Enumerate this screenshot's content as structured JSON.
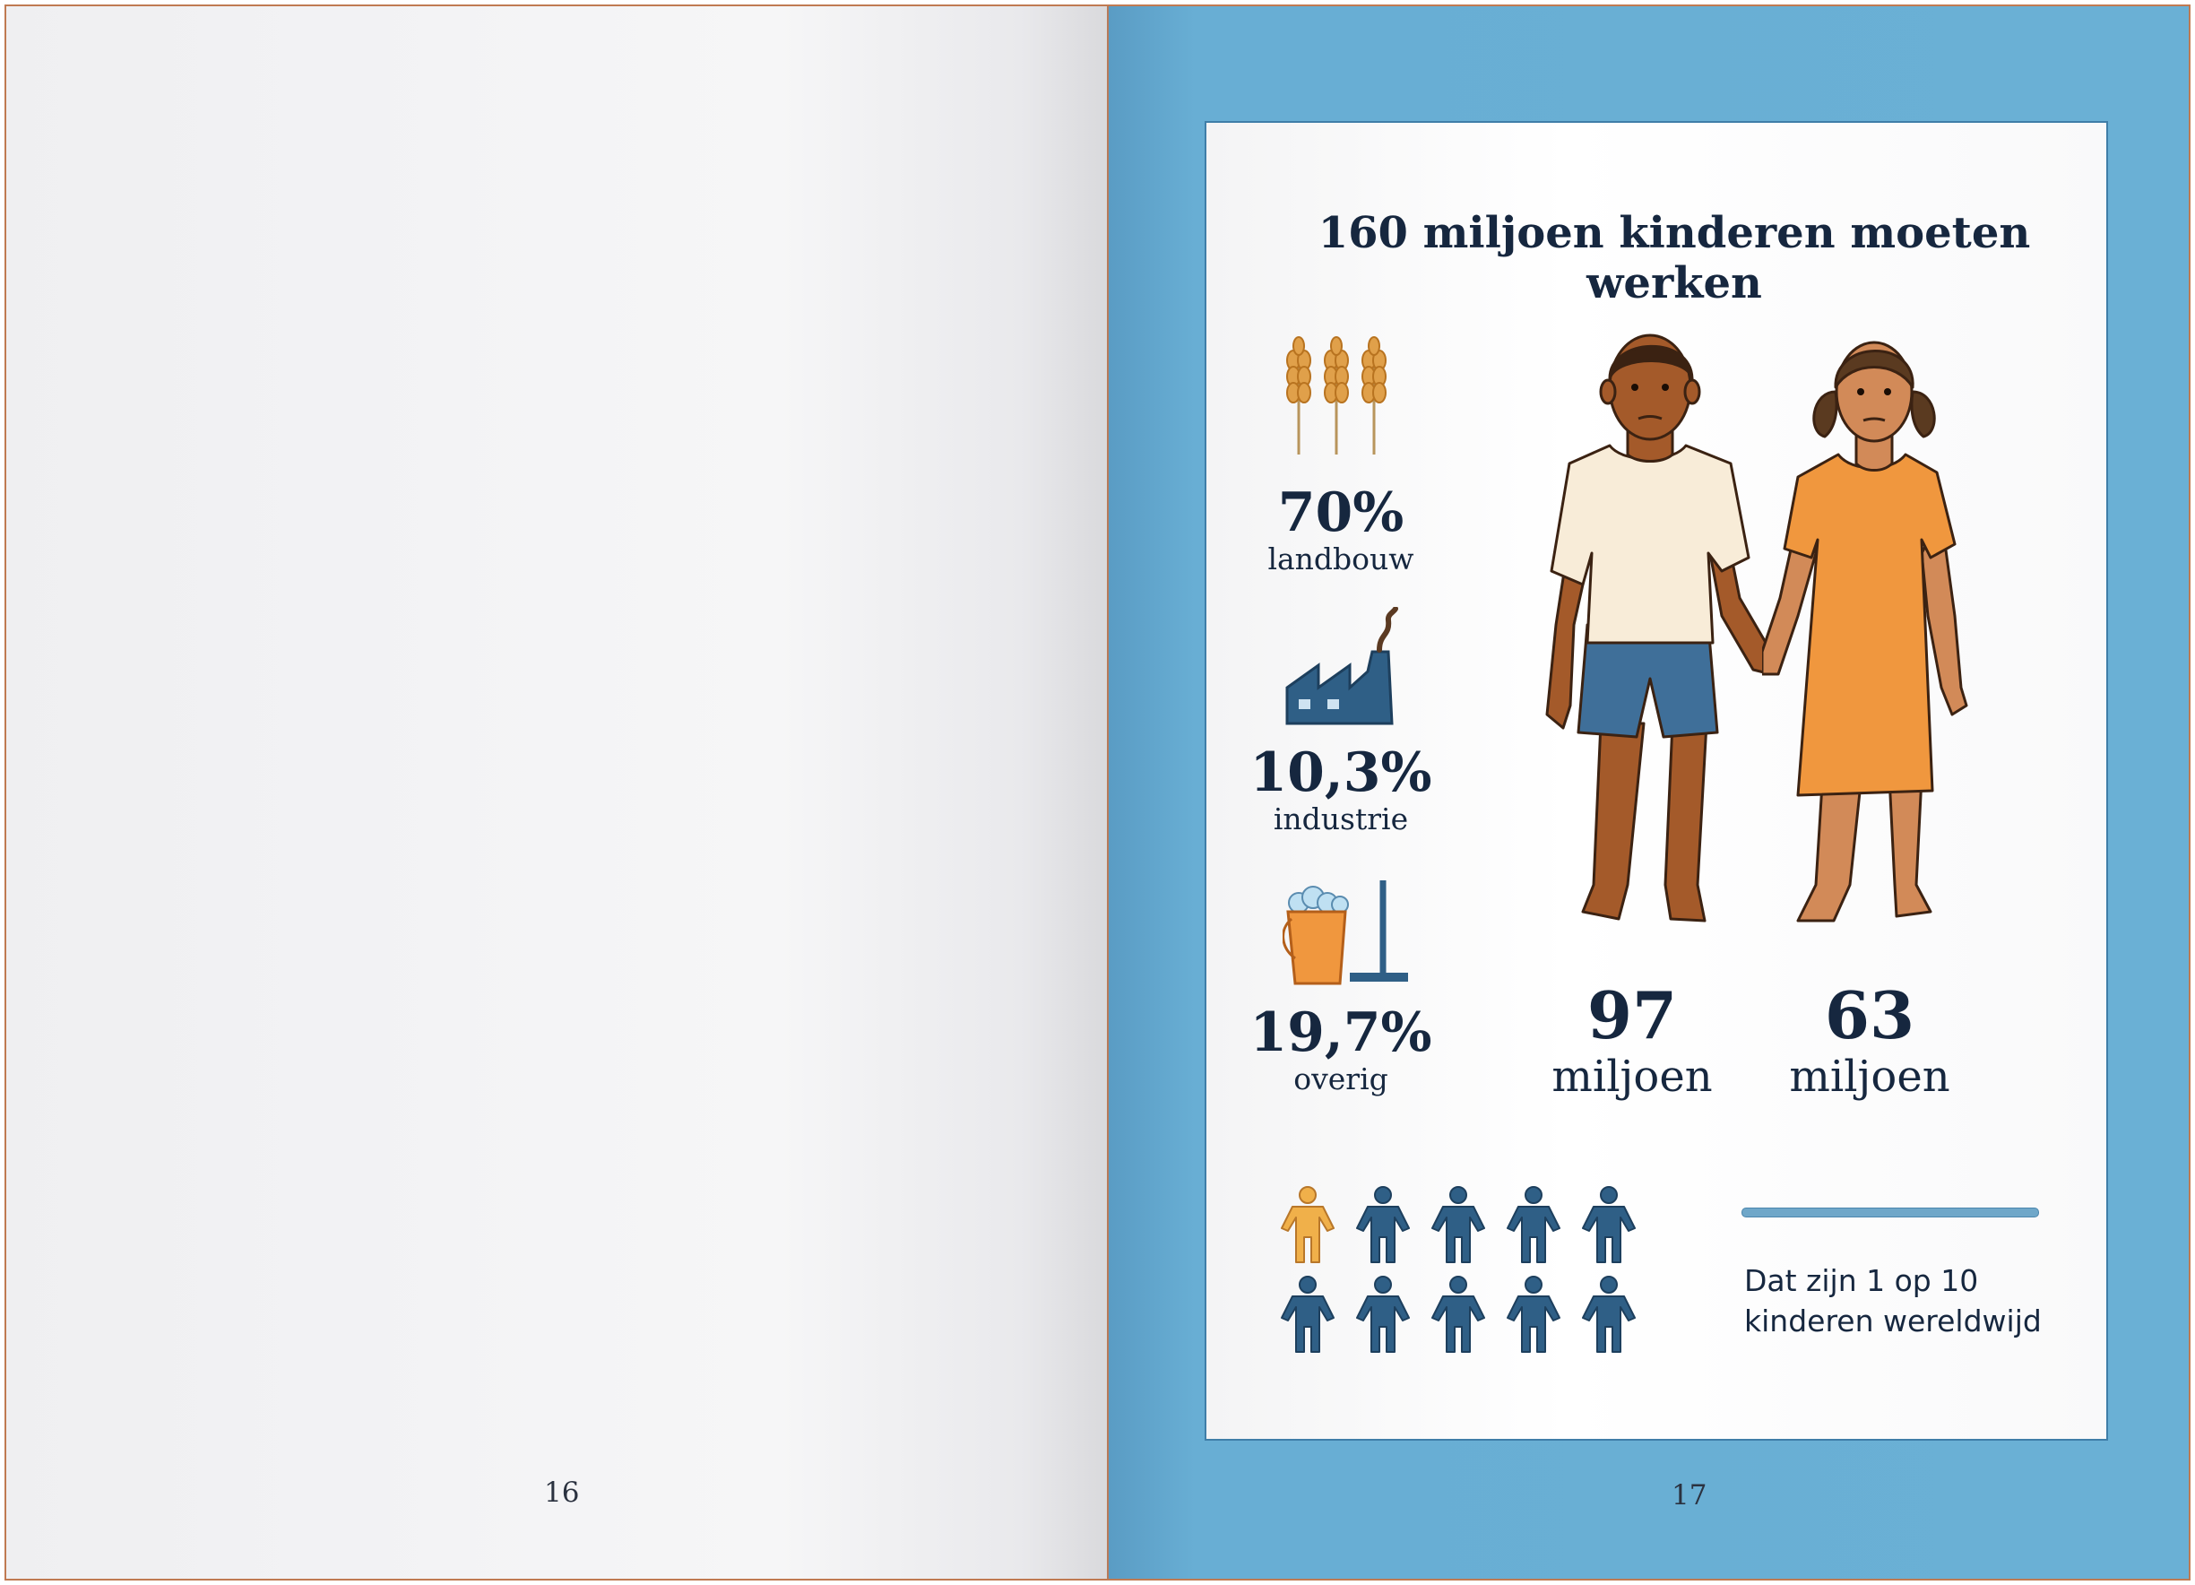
{
  "left_page": {
    "page_number": "16"
  },
  "right_page": {
    "page_number": "17",
    "title": "160 miljoen kinderen moeten werken",
    "sectors": [
      {
        "icon": "wheat-icon",
        "percent": "70%",
        "label": "landbouw"
      },
      {
        "icon": "factory-icon",
        "percent": "10,3%",
        "label": "industrie"
      },
      {
        "icon": "bucket-mop-icon",
        "percent": "19,7%",
        "label": "overig"
      }
    ],
    "boys": {
      "number": "97",
      "unit": "miljoen"
    },
    "girls": {
      "number": "63",
      "unit": "miljoen"
    },
    "ratio": {
      "highlighted": 1,
      "total": 10
    },
    "caption_line1": "Dat zijn 1 op 10",
    "caption_line2": "kinderen wereldwijd",
    "colors": {
      "navy": "#16273f",
      "blue": "#2f5f86",
      "orange": "#f0973e",
      "page_bg": "#6ab0d5"
    }
  }
}
